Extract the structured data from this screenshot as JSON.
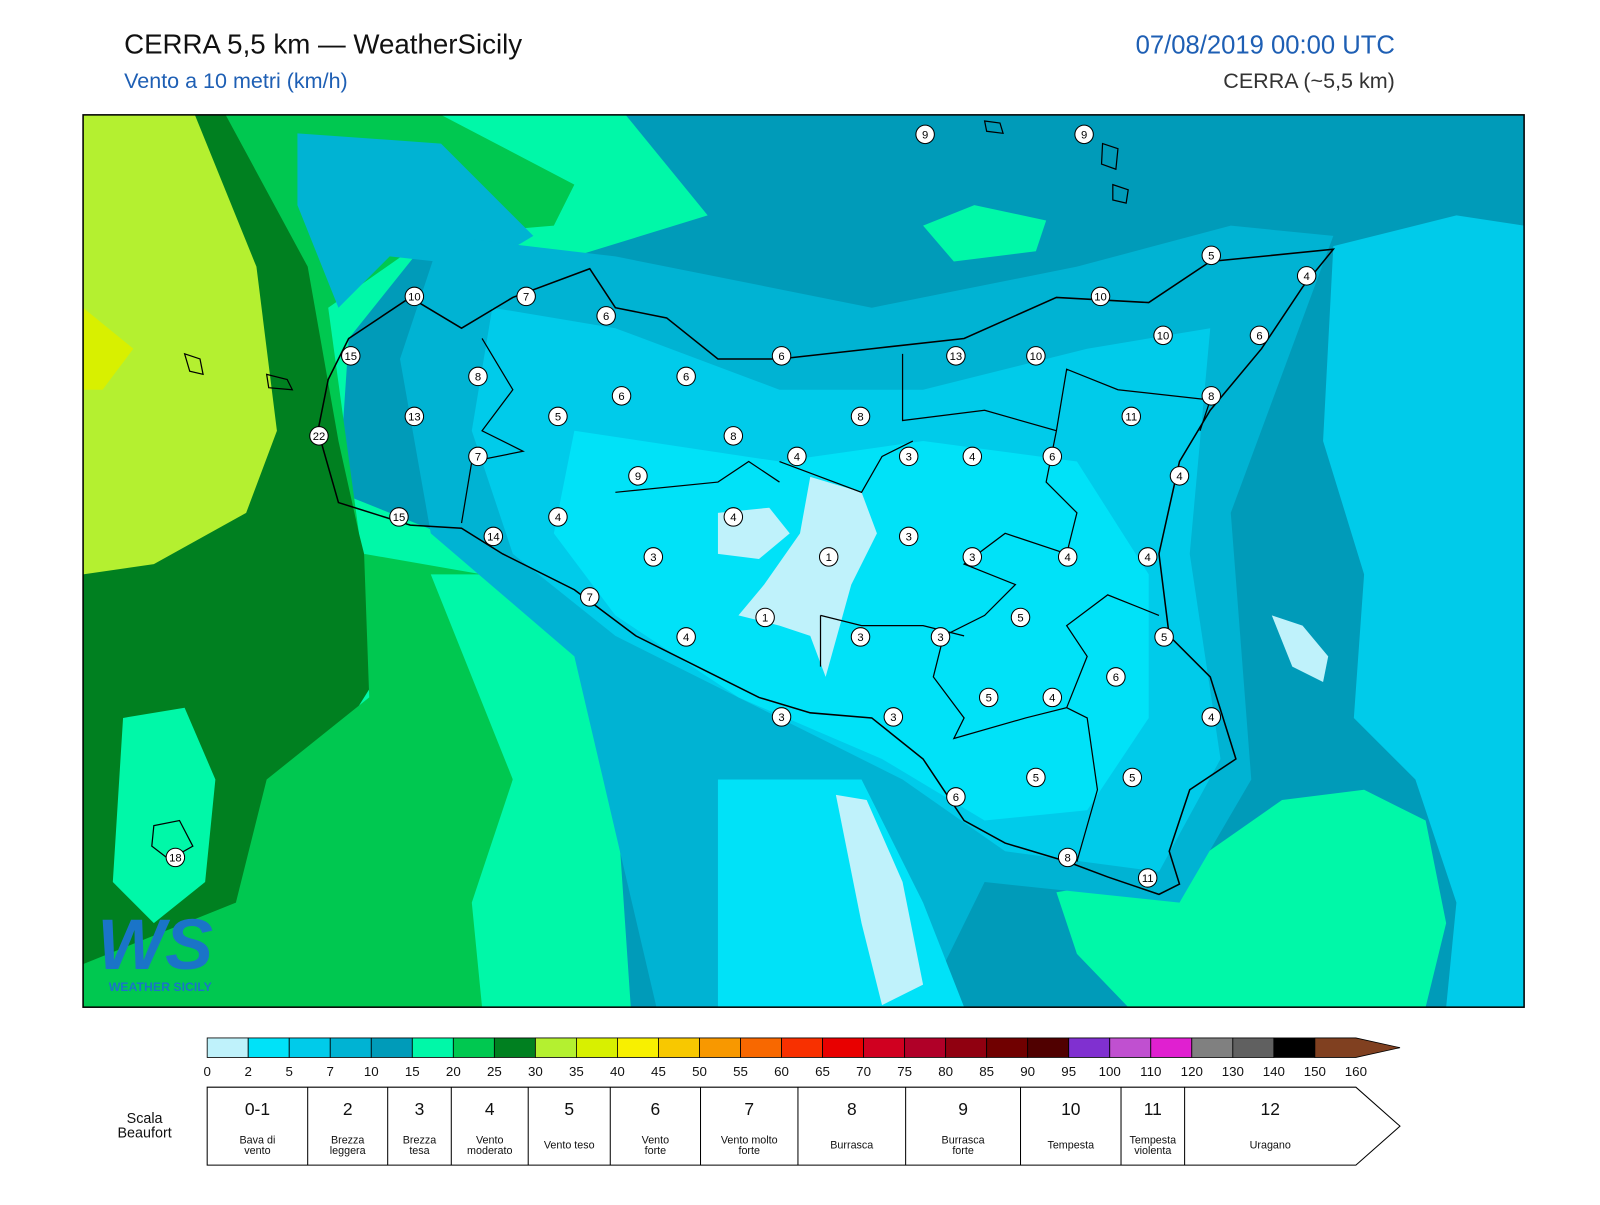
{
  "header": {
    "title": "CERRA 5,5 km — WeatherSicily",
    "subtitle": "Vento a 10 metri (km/h)",
    "datetime": "07/08/2019 00:00 UTC",
    "model": "CERRA (~5,5 km)"
  },
  "logo": {
    "mark": "WS",
    "name": "WEATHER SICILY"
  },
  "stations": [
    9,
    9,
    5,
    4,
    10,
    7,
    6,
    10,
    10,
    6,
    15,
    8,
    6,
    13,
    10,
    6,
    6,
    8,
    13,
    5,
    8,
    11,
    22,
    7,
    8,
    4,
    3,
    4,
    6,
    9,
    4,
    4,
    4,
    15,
    14,
    3,
    3,
    1,
    3,
    4,
    4,
    7,
    1,
    5,
    4,
    3,
    3,
    5,
    6,
    5,
    4,
    3,
    3,
    4,
    5,
    5,
    6,
    8,
    11,
    18
  ],
  "colorbar": {
    "ticks": [
      0,
      2,
      5,
      7,
      10,
      15,
      20,
      25,
      30,
      35,
      40,
      45,
      50,
      55,
      60,
      65,
      70,
      75,
      80,
      85,
      90,
      95,
      100,
      110,
      120,
      130,
      140,
      150,
      160
    ],
    "colors": [
      "#bff2fb",
      "#00e2f8",
      "#00cbea",
      "#00b3d3",
      "#009bb9",
      "#00f8a8",
      "#00c850",
      "#008020",
      "#b4f030",
      "#d8f000",
      "#f8f000",
      "#f8c800",
      "#f89800",
      "#f86800",
      "#f83000",
      "#e80000",
      "#d00020",
      "#b00028",
      "#900010",
      "#700000",
      "#500000",
      "#8030d0",
      "#c050d0",
      "#e020d0",
      "#808080",
      "#606060",
      "#000000",
      "#804020",
      "#c87840"
    ]
  },
  "beaufort": {
    "label": [
      "Scala",
      "Beaufort"
    ],
    "classes": [
      {
        "force": "0-1",
        "name": [
          "Bava di",
          "vento"
        ]
      },
      {
        "force": "2",
        "name": [
          "Brezza",
          "leggera"
        ]
      },
      {
        "force": "3",
        "name": [
          "Brezza",
          "tesa"
        ]
      },
      {
        "force": "4",
        "name": [
          "Vento",
          "moderato"
        ]
      },
      {
        "force": "5",
        "name": [
          "Vento teso"
        ]
      },
      {
        "force": "6",
        "name": [
          "Vento",
          "forte"
        ]
      },
      {
        "force": "7",
        "name": [
          "Vento molto",
          "forte"
        ]
      },
      {
        "force": "8",
        "name": [
          "Burrasca"
        ]
      },
      {
        "force": "9",
        "name": [
          "Burrasca",
          "forte"
        ]
      },
      {
        "force": "10",
        "name": [
          "Tempesta"
        ]
      },
      {
        "force": "11",
        "name": [
          "Tempesta",
          "violenta"
        ]
      },
      {
        "force": "12",
        "name": [
          "Uragano"
        ]
      }
    ]
  }
}
